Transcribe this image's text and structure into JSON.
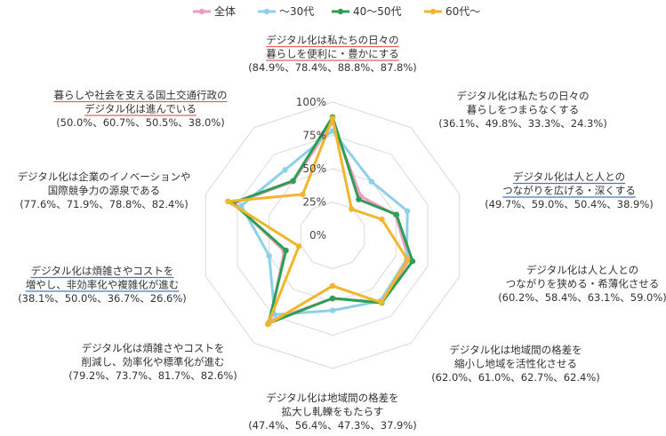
{
  "chart_data": {
    "type": "radar",
    "title": "",
    "axis_ticks": [
      "0%",
      "25%",
      "50%",
      "75%",
      "100%"
    ],
    "range": [
      0,
      100
    ],
    "legend_position": "top",
    "grid": true,
    "categories": [
      {
        "lines": [
          "デジタル化は私たちの日々の",
          "暮らしを便利に・豊かにする",
          "(84.9%、78.4%、88.8%、87.8%)"
        ],
        "underline": "red"
      },
      {
        "lines": [
          "デジタル化は私たちの日々の",
          "暮らしをつまらなくする",
          "(36.1%、49.8%、33.3%、24.3%)"
        ],
        "underline": "none"
      },
      {
        "lines": [
          "デジタル化は人と人との",
          "つながりを広げる・深くする",
          "(49.7%、59.0%、50.4%、38.9%)"
        ],
        "underline": "blue"
      },
      {
        "lines": [
          "デジタル化は人と人との",
          "つながりを狭める・希薄化させる",
          "(60.2%、58.4%、63.1%、59.0%)"
        ],
        "underline": "none"
      },
      {
        "lines": [
          "デジタル化は地域間の格差を",
          "縮小し地域を活性化させる",
          "(62.0%、61.0%、62.7%、62.4%)"
        ],
        "underline": "none"
      },
      {
        "lines": [
          "デジタル化は地域間の格差を",
          "拡大し軋轢をもたらす",
          "(47.4%、56.4%、47.3%、37.9%)"
        ],
        "underline": "none"
      },
      {
        "lines": [
          "デジタル化は煩雑さやコストを",
          "削減し、効率化や標準化が進む",
          "(79.2%、73.7%、81.7%、82.6%)"
        ],
        "underline": "none"
      },
      {
        "lines": [
          "デジタル化は煩雑さやコストを",
          "増やし、非効率化や複雑化が進む",
          "(38.1%、50.0%、36.7%、26.6%)"
        ],
        "underline": "blue"
      },
      {
        "lines": [
          "デジタル化は企業のイノベーションや",
          "国際競争力の源泉である",
          "(77.6%、71.9%、78.8%、82.4%)"
        ],
        "underline": "none"
      },
      {
        "lines": [
          "暮らしや社会を支える国土交通行政の",
          "デジタル化は進んでいる",
          "(50.0%、60.7%、50.5%、38.0%)"
        ],
        "underline": "red"
      }
    ],
    "series": [
      {
        "name": "全体",
        "color": "#f29ac0",
        "values": [
          84.9,
          36.1,
          49.7,
          60.2,
          62.0,
          47.4,
          79.2,
          38.1,
          77.6,
          50.0
        ]
      },
      {
        "name": "～30代",
        "color": "#8dd0e8",
        "values": [
          78.4,
          49.8,
          59.0,
          58.4,
          61.0,
          56.4,
          73.7,
          50.0,
          71.9,
          60.7
        ]
      },
      {
        "name": "40～50代",
        "color": "#2e9e55",
        "values": [
          88.8,
          33.3,
          50.4,
          63.1,
          62.7,
          47.3,
          81.7,
          36.7,
          78.8,
          50.5
        ]
      },
      {
        "name": "60代～",
        "color": "#f2b52b",
        "values": [
          87.8,
          24.3,
          38.9,
          59.0,
          62.4,
          37.9,
          82.6,
          26.6,
          82.4,
          38.0
        ]
      }
    ],
    "underline_colors": {
      "red": "#e06060",
      "blue": "#3a7bc8"
    }
  }
}
